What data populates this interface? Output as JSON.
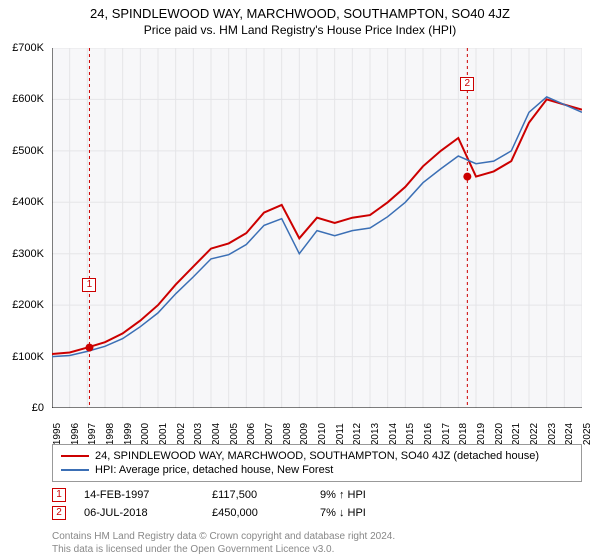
{
  "title": {
    "main": "24, SPINDLEWOOD WAY, MARCHWOOD, SOUTHAMPTON, SO40 4JZ",
    "sub": "Price paid vs. HM Land Registry's House Price Index (HPI)",
    "fontsize_main": 13,
    "fontsize_sub": 12
  },
  "chart": {
    "type": "line",
    "background_color": "#ffffff",
    "plot_bg_color": "#f7f7f9",
    "grid_color": "#e5e5e8",
    "axis_color": "#000000",
    "x": {
      "min": 1995,
      "max": 2025,
      "ticks": [
        1995,
        1996,
        1997,
        1998,
        1999,
        2000,
        2001,
        2002,
        2003,
        2004,
        2005,
        2006,
        2007,
        2008,
        2009,
        2010,
        2011,
        2012,
        2013,
        2014,
        2015,
        2016,
        2017,
        2018,
        2019,
        2020,
        2021,
        2022,
        2023,
        2024,
        2025
      ],
      "label_fontsize": 10
    },
    "y": {
      "min": 0,
      "max": 700000,
      "ticks": [
        0,
        100000,
        200000,
        300000,
        400000,
        500000,
        600000,
        700000
      ],
      "tick_labels": [
        "£0",
        "£100K",
        "£200K",
        "£300K",
        "£400K",
        "£500K",
        "£600K",
        "£700K"
      ],
      "label_fontsize": 11
    },
    "series": [
      {
        "name": "price_paid",
        "label": "24, SPINDLEWOOD WAY, MARCHWOOD, SOUTHAMPTON, SO40 4JZ (detached house)",
        "color": "#cc0000",
        "line_width": 2,
        "x": [
          1995,
          1996,
          1997,
          1998,
          1999,
          2000,
          2001,
          2002,
          2003,
          2004,
          2005,
          2006,
          2007,
          2008,
          2009,
          2010,
          2011,
          2012,
          2013,
          2014,
          2015,
          2016,
          2017,
          2018,
          2019,
          2020,
          2021,
          2022,
          2023,
          2024,
          2025
        ],
        "y": [
          105000,
          108000,
          117500,
          128000,
          145000,
          170000,
          200000,
          240000,
          275000,
          310000,
          320000,
          340000,
          380000,
          395000,
          330000,
          370000,
          360000,
          370000,
          375000,
          400000,
          430000,
          470000,
          500000,
          525000,
          450000,
          460000,
          480000,
          555000,
          600000,
          590000,
          580000
        ]
      },
      {
        "name": "hpi",
        "label": "HPI: Average price, detached house, New Forest",
        "color": "#3b6fb5",
        "line_width": 1.5,
        "x": [
          1995,
          1996,
          1997,
          1998,
          1999,
          2000,
          2001,
          2002,
          2003,
          2004,
          2005,
          2006,
          2007,
          2008,
          2009,
          2010,
          2011,
          2012,
          2013,
          2014,
          2015,
          2016,
          2017,
          2018,
          2019,
          2020,
          2021,
          2022,
          2023,
          2024,
          2025
        ],
        "y": [
          100000,
          102000,
          110000,
          120000,
          135000,
          158000,
          185000,
          222000,
          255000,
          290000,
          298000,
          318000,
          355000,
          368000,
          300000,
          345000,
          335000,
          345000,
          350000,
          372000,
          400000,
          438000,
          465000,
          490000,
          475000,
          480000,
          500000,
          575000,
          605000,
          590000,
          575000
        ]
      }
    ],
    "sale_markers": [
      {
        "id": "1",
        "x": 1997.12,
        "y": 117500,
        "color": "#cc0000",
        "box_border": "#cc0000",
        "box_label_y_offset": -70
      },
      {
        "id": "2",
        "x": 2018.51,
        "y": 450000,
        "color": "#cc0000",
        "box_border": "#cc0000",
        "box_label_y_offset": -100
      }
    ],
    "marker_line_color": "#cc0000",
    "marker_line_dash": "3,3"
  },
  "legend": {
    "border_color": "#999999",
    "fontsize": 11,
    "items": [
      {
        "color": "#cc0000",
        "width": 2,
        "label": "24, SPINDLEWOOD WAY, MARCHWOOD, SOUTHAMPTON, SO40 4JZ (detached house)"
      },
      {
        "color": "#3b6fb5",
        "width": 1.5,
        "label": "HPI: Average price, detached house, New Forest"
      }
    ]
  },
  "sales_table": {
    "fontsize": 11,
    "rows": [
      {
        "marker": "1",
        "marker_border": "#cc0000",
        "date": "14-FEB-1997",
        "price": "£117,500",
        "hpi": "9% ↑ HPI"
      },
      {
        "marker": "2",
        "marker_border": "#cc0000",
        "date": "06-JUL-2018",
        "price": "£450,000",
        "hpi": "7% ↓ HPI"
      }
    ]
  },
  "footer": {
    "line1": "Contains HM Land Registry data © Crown copyright and database right 2024.",
    "line2": "This data is licensed under the Open Government Licence v3.0.",
    "color": "#888888",
    "fontsize": 10
  }
}
